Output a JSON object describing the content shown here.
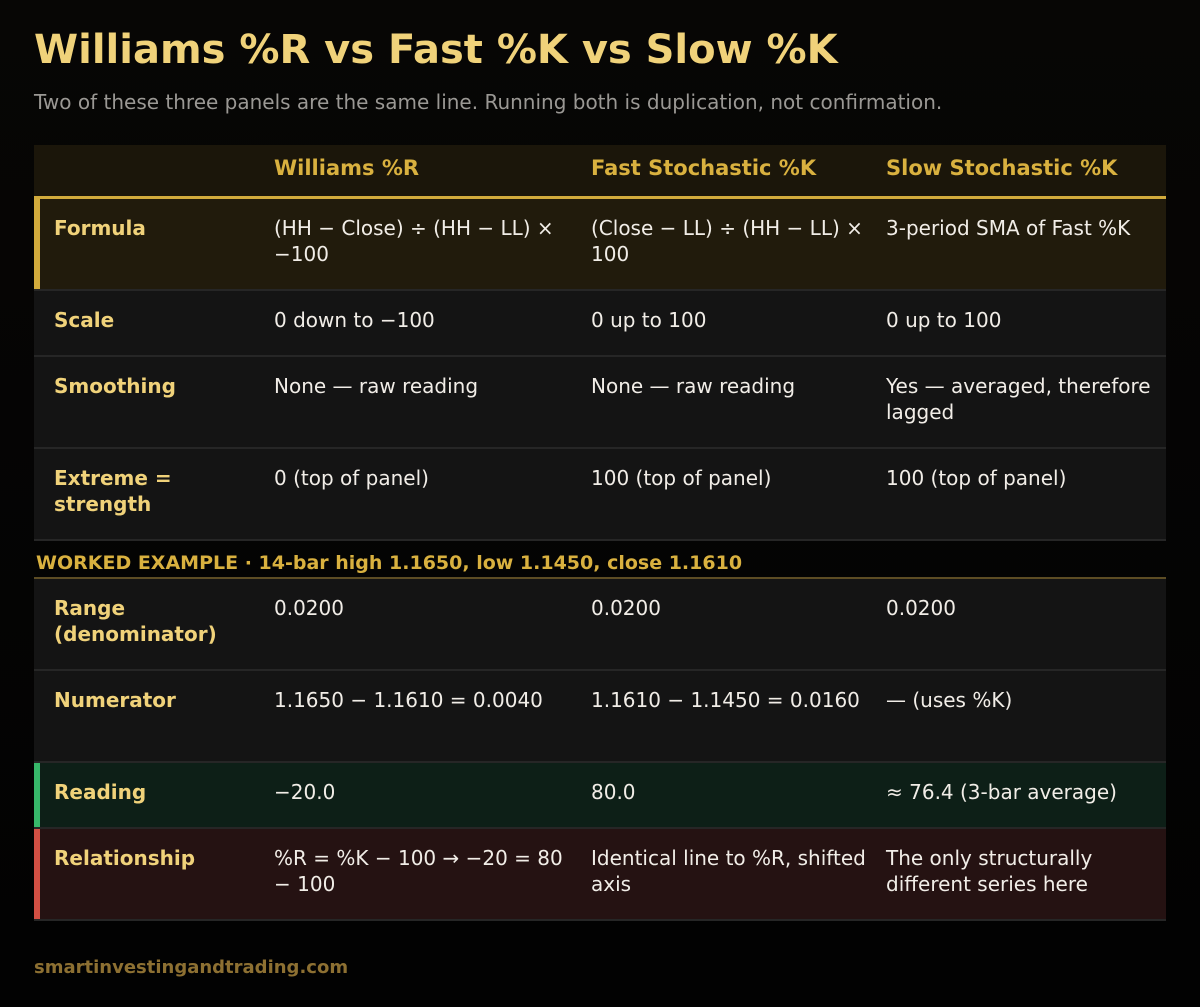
{
  "title": "Williams %R vs Fast %K vs Slow %K",
  "subtitle": "Two of these three panels are the same line. Running both is duplication, not confirmation.",
  "table": {
    "headers": [
      "",
      "Williams %R",
      "Fast Stochastic %K",
      "Slow Stochastic %K"
    ],
    "rows": [
      {
        "label": "Formula",
        "cells": [
          "(HH − Close) ÷ (HH − LL) × −100",
          "(Close − LL) ÷ (HH − LL) × 100",
          "3-period SMA of Fast %K"
        ]
      },
      {
        "label": "Scale",
        "cells": [
          "0 down to −100",
          "0 up to 100",
          "0 up to 100"
        ]
      },
      {
        "label": "Smoothing",
        "cells": [
          "None — raw reading",
          "None — raw reading",
          "Yes — averaged, therefore lagged"
        ]
      },
      {
        "label": "Extreme = strength",
        "cells": [
          "0 (top of panel)",
          "100 (top of panel)",
          "100 (top of panel)"
        ]
      }
    ],
    "section_heading": "WORKED EXAMPLE  ·  14-bar high 1.1650, low 1.1450, close 1.1610",
    "example_rows": [
      {
        "label": "Range (denominator)",
        "cells": [
          "0.0200",
          "0.0200",
          "0.0200"
        ]
      },
      {
        "label": "Numerator",
        "cells": [
          "1.1650 − 1.1610 = 0.0040",
          "1.1610 − 1.1450 = 0.0160",
          "— (uses %K)"
        ]
      },
      {
        "label": "Reading",
        "cells": [
          "−20.0",
          "80.0",
          "≈ 76.4 (3-bar average)"
        ]
      },
      {
        "label": "Relationship",
        "cells": [
          "%R = %K − 100 → −20 = 80 − 100",
          "Identical line to %R, shifted axis",
          "The only structurally different series here"
        ]
      }
    ]
  },
  "footer": "smartinvestingandtrading.com",
  "colors": {
    "gold": "#d9b13f",
    "light_gold": "#f0d27a",
    "reading_accent": "#37b86a",
    "relationship_accent": "#d24f43"
  }
}
